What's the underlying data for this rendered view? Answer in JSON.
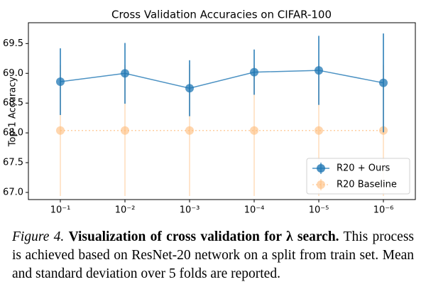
{
  "chart_data": {
    "type": "line",
    "title": "Cross Validation Accuracies on CIFAR-100",
    "ylabel": "Top-1 Accuracy",
    "categories": [
      "10⁻¹",
      "10⁻²",
      "10⁻³",
      "10⁻⁴",
      "10⁻⁵",
      "10⁻⁶"
    ],
    "series": [
      {
        "name": "R20 + Ours",
        "color": "#1f77b4",
        "values": [
          68.86,
          69.0,
          68.75,
          69.02,
          69.05,
          68.84
        ],
        "errors": [
          0.56,
          0.51,
          0.47,
          0.38,
          0.58,
          0.83
        ]
      },
      {
        "name": "R20 Baseline",
        "color": "#ffbb78",
        "values": [
          68.04,
          68.04,
          68.04,
          68.04,
          68.04,
          68.04
        ],
        "errors": [
          1.1,
          1.1,
          1.1,
          1.1,
          1.1,
          1.1
        ]
      }
    ],
    "ylim": [
      66.88,
      69.85
    ],
    "yticks": [
      {
        "value": 67,
        "label": "67.0"
      },
      67.5,
      {
        "value": 68,
        "label": "68.0"
      },
      68.5,
      {
        "value": 69,
        "label": "69.0"
      },
      69.5
    ],
    "legend": "lower right"
  },
  "caption": {
    "label": "Figure 4.",
    "title": "Visualization of cross validation for λ search.",
    "text": "This process is achieved based on ResNet-20 network on a split from train set. Mean and standard deviation over 5 folds are reported."
  }
}
